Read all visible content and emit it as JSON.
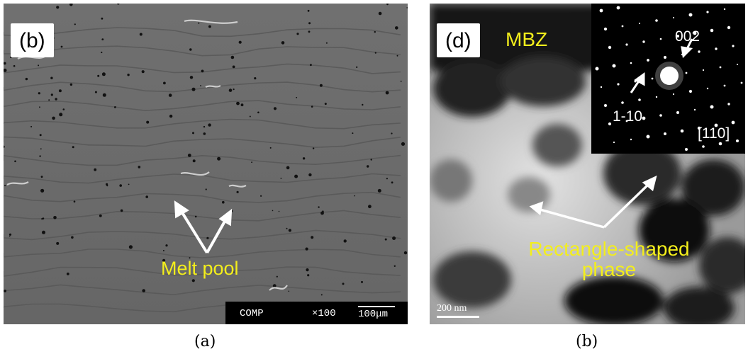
{
  "left_panel": {
    "label": "(b)",
    "annotation": "Melt pool",
    "scale_bar": {
      "mode": "COMP",
      "magnification": "×100",
      "length": "100μm"
    }
  },
  "right_panel": {
    "label": "(d)",
    "region_label": "MBZ",
    "annotation_line1": "Rectangle-shaped",
    "annotation_line2": "phase",
    "inset": {
      "spot_002": "002",
      "spot_1_10": "1-10",
      "zone_axis": "[110]"
    },
    "scale_bar": "200 nm"
  },
  "captions": {
    "left": "(a)",
    "right": "(b)"
  }
}
